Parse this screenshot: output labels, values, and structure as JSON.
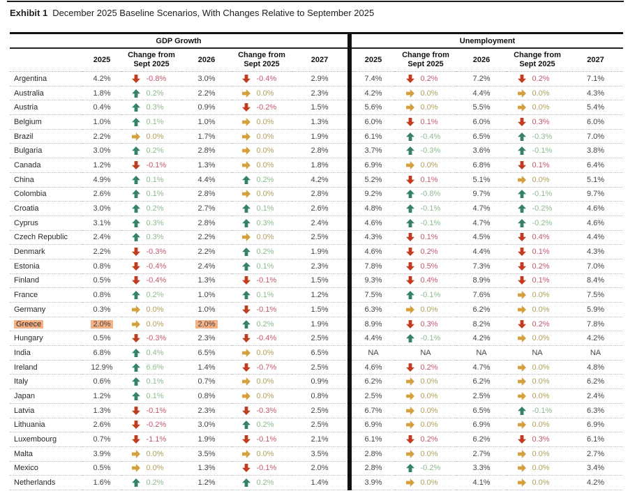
{
  "title": {
    "label": "Exhibit 1",
    "text": "December 2025 Baseline Scenarios, With Changes Relative to September 2025"
  },
  "table": {
    "group_headers": [
      "GDP Growth",
      "Unemployment"
    ],
    "col_headers": [
      "2025",
      "Change from Sept 2025",
      "2026",
      "Change from Sept 2025",
      "2027"
    ],
    "colors": {
      "up_arrow": "#35826B",
      "down_arrow": "#C33B1E",
      "flat_arrow": "#D3A23C",
      "up_text": "#8CBA8E",
      "down_text": "#C2586B",
      "flat_text": "#B1A05A",
      "value_text": "#44444C",
      "highlight": "#F5B183"
    },
    "rows": [
      {
        "country": "Argentina",
        "gdp": [
          "4.2%",
          {
            "dir": "down",
            "value": "-0.8%"
          },
          "3.0%",
          {
            "dir": "down",
            "value": "-0.4%"
          },
          "2.9%"
        ],
        "unemployment": [
          "7.4%",
          {
            "dir": "down",
            "value": "0.2%"
          },
          "7.2%",
          {
            "dir": "down",
            "value": "0.2%"
          },
          "7.1%"
        ]
      },
      {
        "country": "Australia",
        "gdp": [
          "1.8%",
          {
            "dir": "up",
            "value": "0.2%"
          },
          "2.2%",
          {
            "dir": "flat",
            "value": "0.0%"
          },
          "2.3%"
        ],
        "unemployment": [
          "4.2%",
          {
            "dir": "flat",
            "value": "0.0%"
          },
          "4.4%",
          {
            "dir": "flat",
            "value": "0.0%"
          },
          "4.3%"
        ]
      },
      {
        "country": "Austria",
        "gdp": [
          "0.4%",
          {
            "dir": "up",
            "value": "0.3%"
          },
          "0.9%",
          {
            "dir": "down",
            "value": "-0.2%"
          },
          "1.5%"
        ],
        "unemployment": [
          "5.6%",
          {
            "dir": "flat",
            "value": "0.0%"
          },
          "5.5%",
          {
            "dir": "flat",
            "value": "0.0%"
          },
          "5.4%"
        ]
      },
      {
        "country": "Belgium",
        "gdp": [
          "1.0%",
          {
            "dir": "up",
            "value": "0.1%"
          },
          "1.0%",
          {
            "dir": "flat",
            "value": "0.0%"
          },
          "1.3%"
        ],
        "unemployment": [
          "6.0%",
          {
            "dir": "down",
            "value": "0.1%"
          },
          "6.0%",
          {
            "dir": "down",
            "value": "0.3%"
          },
          "6.0%"
        ]
      },
      {
        "country": "Brazil",
        "gdp": [
          "2.2%",
          {
            "dir": "flat",
            "value": "0.0%"
          },
          "1.7%",
          {
            "dir": "flat",
            "value": "0.0%"
          },
          "1.9%"
        ],
        "unemployment": [
          "6.1%",
          {
            "dir": "up",
            "value": "-0.4%"
          },
          "6.5%",
          {
            "dir": "up",
            "value": "-0.3%"
          },
          "7.0%"
        ]
      },
      {
        "country": "Bulgaria",
        "gdp": [
          "3.0%",
          {
            "dir": "up",
            "value": "0.2%"
          },
          "2.8%",
          {
            "dir": "flat",
            "value": "0.0%"
          },
          "2.8%"
        ],
        "unemployment": [
          "3.7%",
          {
            "dir": "up",
            "value": "-0.3%"
          },
          "3.6%",
          {
            "dir": "up",
            "value": "-0.1%"
          },
          "3.8%"
        ]
      },
      {
        "country": "Canada",
        "gdp": [
          "1.2%",
          {
            "dir": "down",
            "value": "-0.1%"
          },
          "1.3%",
          {
            "dir": "flat",
            "value": "0.0%"
          },
          "1.8%"
        ],
        "unemployment": [
          "6.9%",
          {
            "dir": "flat",
            "value": "0.0%"
          },
          "6.8%",
          {
            "dir": "down",
            "value": "0.1%"
          },
          "6.4%"
        ]
      },
      {
        "country": "China",
        "gdp": [
          "4.9%",
          {
            "dir": "up",
            "value": "0.1%"
          },
          "4.4%",
          {
            "dir": "up",
            "value": "0.2%"
          },
          "4.2%"
        ],
        "unemployment": [
          "5.2%",
          {
            "dir": "down",
            "value": "0.1%"
          },
          "5.1%",
          {
            "dir": "flat",
            "value": "0.0%"
          },
          "5.1%"
        ]
      },
      {
        "country": "Colombia",
        "gdp": [
          "2.6%",
          {
            "dir": "up",
            "value": "0.1%"
          },
          "2.8%",
          {
            "dir": "flat",
            "value": "0.0%"
          },
          "2.8%"
        ],
        "unemployment": [
          "9.2%",
          {
            "dir": "up",
            "value": "-0.8%"
          },
          "9.7%",
          {
            "dir": "up",
            "value": "-0.1%"
          },
          "9.7%"
        ]
      },
      {
        "country": "Croatia",
        "gdp": [
          "3.0%",
          {
            "dir": "up",
            "value": "0.2%"
          },
          "2.7%",
          {
            "dir": "up",
            "value": "0.1%"
          },
          "2.6%"
        ],
        "unemployment": [
          "4.8%",
          {
            "dir": "up",
            "value": "-0.1%"
          },
          "4.7%",
          {
            "dir": "up",
            "value": "-0.2%"
          },
          "4.6%"
        ]
      },
      {
        "country": "Cyprus",
        "gdp": [
          "3.1%",
          {
            "dir": "up",
            "value": "0.3%"
          },
          "2.8%",
          {
            "dir": "up",
            "value": "0.3%"
          },
          "2.4%"
        ],
        "unemployment": [
          "4.6%",
          {
            "dir": "up",
            "value": "-0.1%"
          },
          "4.7%",
          {
            "dir": "up",
            "value": "-0.2%"
          },
          "4.6%"
        ]
      },
      {
        "country": "Czech Republic",
        "gdp": [
          "2.4%",
          {
            "dir": "up",
            "value": "0.3%"
          },
          "2.2%",
          {
            "dir": "flat",
            "value": "0.0%"
          },
          "2.5%"
        ],
        "unemployment": [
          "4.3%",
          {
            "dir": "down",
            "value": "0.1%"
          },
          "4.5%",
          {
            "dir": "down",
            "value": "0.4%"
          },
          "4.4%"
        ]
      },
      {
        "country": "Denmark",
        "gdp": [
          "2.2%",
          {
            "dir": "down",
            "value": "-0.3%"
          },
          "2.2%",
          {
            "dir": "up",
            "value": "0.2%"
          },
          "1.9%"
        ],
        "unemployment": [
          "4.6%",
          {
            "dir": "down",
            "value": "0.2%"
          },
          "4.4%",
          {
            "dir": "down",
            "value": "0.1%"
          },
          "4.3%"
        ]
      },
      {
        "country": "Estonia",
        "gdp": [
          "0.8%",
          {
            "dir": "down",
            "value": "-0.4%"
          },
          "2.4%",
          {
            "dir": "up",
            "value": "0.1%"
          },
          "2.3%"
        ],
        "unemployment": [
          "7.8%",
          {
            "dir": "down",
            "value": "0.5%"
          },
          "7.3%",
          {
            "dir": "down",
            "value": "0.2%"
          },
          "7.0%"
        ]
      },
      {
        "country": "Finland",
        "gdp": [
          "0.5%",
          {
            "dir": "down",
            "value": "-0.4%"
          },
          "1.3%",
          {
            "dir": "down",
            "value": "-0.1%"
          },
          "1.5%"
        ],
        "unemployment": [
          "9.3%",
          {
            "dir": "down",
            "value": "0.4%"
          },
          "8.9%",
          {
            "dir": "down",
            "value": "0.1%"
          },
          "8.4%"
        ]
      },
      {
        "country": "France",
        "gdp": [
          "0.8%",
          {
            "dir": "up",
            "value": "0.2%"
          },
          "1.0%",
          {
            "dir": "up",
            "value": "0.1%"
          },
          "1.2%"
        ],
        "unemployment": [
          "7.5%",
          {
            "dir": "up",
            "value": "-0.1%"
          },
          "7.6%",
          {
            "dir": "flat",
            "value": "0.0%"
          },
          "7.5%"
        ]
      },
      {
        "country": "Germany",
        "gdp": [
          "0.3%",
          {
            "dir": "flat",
            "value": "0.0%"
          },
          "1.0%",
          {
            "dir": "down",
            "value": "-0.1%"
          },
          "1.5%"
        ],
        "unemployment": [
          "6.3%",
          {
            "dir": "flat",
            "value": "0.0%"
          },
          "6.2%",
          {
            "dir": "flat",
            "value": "0.0%"
          },
          "5.9%"
        ]
      },
      {
        "country": "Greece",
        "highlights": {
          "country": true,
          "gdp_values": [
            0,
            2
          ]
        },
        "gdp": [
          "2.0%",
          {
            "dir": "flat",
            "value": "0.0%"
          },
          "2.0%",
          {
            "dir": "up",
            "value": "0.2%"
          },
          "1.9%"
        ],
        "unemployment": [
          "8.9%",
          {
            "dir": "down",
            "value": "0.3%"
          },
          "8.2%",
          {
            "dir": "down",
            "value": "0.2%"
          },
          "7.8%"
        ]
      },
      {
        "country": "Hungary",
        "gdp": [
          "0.5%",
          {
            "dir": "down",
            "value": "-0.3%"
          },
          "2.3%",
          {
            "dir": "down",
            "value": "-0.4%"
          },
          "2.5%"
        ],
        "unemployment": [
          "4.4%",
          {
            "dir": "up",
            "value": "-0.1%"
          },
          "4.2%",
          {
            "dir": "flat",
            "value": "0.0%"
          },
          "4.2%"
        ]
      },
      {
        "country": "India",
        "gdp": [
          "6.8%",
          {
            "dir": "up",
            "value": "0.4%"
          },
          "6.5%",
          {
            "dir": "flat",
            "value": "0.0%"
          },
          "6.5%"
        ],
        "unemployment": [
          "NA",
          {
            "dir": "na",
            "value": "NA"
          },
          "NA",
          {
            "dir": "na",
            "value": "NA"
          },
          "NA"
        ]
      },
      {
        "country": "Ireland",
        "gdp": [
          "12.9%",
          {
            "dir": "up",
            "value": "6.6%"
          },
          "1.4%",
          {
            "dir": "down",
            "value": "-0.7%"
          },
          "2.5%"
        ],
        "unemployment": [
          "4.6%",
          {
            "dir": "down",
            "value": "0.2%"
          },
          "4.7%",
          {
            "dir": "flat",
            "value": "0.0%"
          },
          "4.8%"
        ]
      },
      {
        "country": "Italy",
        "gdp": [
          "0.6%",
          {
            "dir": "up",
            "value": "0.1%"
          },
          "0.7%",
          {
            "dir": "flat",
            "value": "0.0%"
          },
          "0.9%"
        ],
        "unemployment": [
          "6.2%",
          {
            "dir": "flat",
            "value": "0.0%"
          },
          "6.2%",
          {
            "dir": "flat",
            "value": "0.0%"
          },
          "6.2%"
        ]
      },
      {
        "country": "Japan",
        "gdp": [
          "1.2%",
          {
            "dir": "up",
            "value": "0.1%"
          },
          "0.8%",
          {
            "dir": "flat",
            "value": "0.0%"
          },
          "0.8%"
        ],
        "unemployment": [
          "2.5%",
          {
            "dir": "flat",
            "value": "0.0%"
          },
          "2.5%",
          {
            "dir": "flat",
            "value": "0.0%"
          },
          "2.4%"
        ]
      },
      {
        "country": "Latvia",
        "gdp": [
          "1.3%",
          {
            "dir": "down",
            "value": "-0.1%"
          },
          "2.3%",
          {
            "dir": "down",
            "value": "-0.3%"
          },
          "2.5%"
        ],
        "unemployment": [
          "6.7%",
          {
            "dir": "flat",
            "value": "0.0%"
          },
          "6.5%",
          {
            "dir": "up",
            "value": "-0.1%"
          },
          "6.3%"
        ]
      },
      {
        "country": "Lithuania",
        "gdp": [
          "2.6%",
          {
            "dir": "down",
            "value": "-0.2%"
          },
          "3.0%",
          {
            "dir": "up",
            "value": "0.2%"
          },
          "2.5%"
        ],
        "unemployment": [
          "6.9%",
          {
            "dir": "flat",
            "value": "0.0%"
          },
          "6.9%",
          {
            "dir": "flat",
            "value": "0.0%"
          },
          "6.9%"
        ]
      },
      {
        "country": "Luxembourg",
        "gdp": [
          "0.7%",
          {
            "dir": "down",
            "value": "-1.1%"
          },
          "1.9%",
          {
            "dir": "down",
            "value": "-0.1%"
          },
          "2.1%"
        ],
        "unemployment": [
          "6.1%",
          {
            "dir": "down",
            "value": "0.2%"
          },
          "6.2%",
          {
            "dir": "down",
            "value": "0.3%"
          },
          "6.1%"
        ]
      },
      {
        "country": "Malta",
        "gdp": [
          "3.9%",
          {
            "dir": "flat",
            "value": "0.0%"
          },
          "3.5%",
          {
            "dir": "flat",
            "value": "0.0%"
          },
          "3.5%"
        ],
        "unemployment": [
          "2.8%",
          {
            "dir": "flat",
            "value": "0.0%"
          },
          "2.7%",
          {
            "dir": "flat",
            "value": "0.0%"
          },
          "2.7%"
        ]
      },
      {
        "country": "Mexico",
        "gdp": [
          "0.5%",
          {
            "dir": "flat",
            "value": "0.0%"
          },
          "1.3%",
          {
            "dir": "down",
            "value": "-0.1%"
          },
          "2.0%"
        ],
        "unemployment": [
          "2.8%",
          {
            "dir": "up",
            "value": "-0.2%"
          },
          "3.3%",
          {
            "dir": "flat",
            "value": "0.0%"
          },
          "3.4%"
        ]
      },
      {
        "country": "Netherlands",
        "gdp": [
          "1.6%",
          {
            "dir": "up",
            "value": "0.2%"
          },
          "1.2%",
          {
            "dir": "up",
            "value": "0.2%"
          },
          "1.4%"
        ],
        "unemployment": [
          "3.9%",
          {
            "dir": "flat",
            "value": "0.0%"
          },
          "4.1%",
          {
            "dir": "flat",
            "value": "0.0%"
          },
          "4.2%"
        ]
      }
    ]
  }
}
